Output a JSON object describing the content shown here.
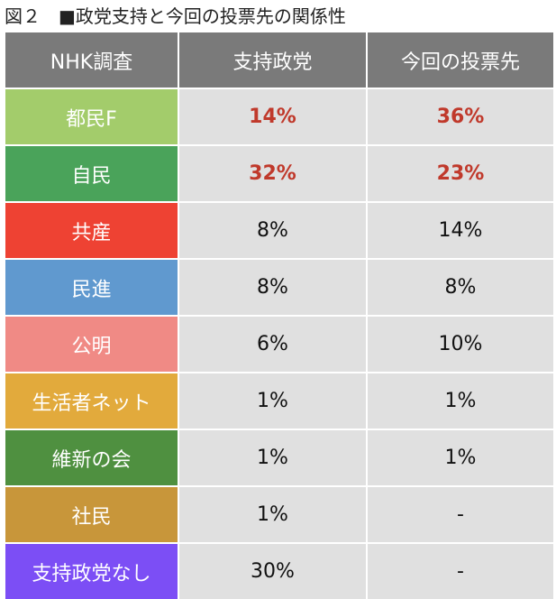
{
  "title": "図２　■政党支持と今回の投票先の関係性",
  "chart_data": {
    "type": "table",
    "title": "図２　■政党支持と今回の投票先の関係性",
    "columns": [
      "NHK調査",
      "支持政党",
      "今回の投票先"
    ],
    "rows": [
      {
        "party": "都民F",
        "color": "#a3cc6b",
        "support": "14%",
        "vote": "36%",
        "highlight": true
      },
      {
        "party": "自民",
        "color": "#4aa35a",
        "support": "32%",
        "vote": "23%",
        "highlight": true
      },
      {
        "party": "共産",
        "color": "#ee4233",
        "support": "8%",
        "vote": "14%",
        "highlight": false
      },
      {
        "party": "民進",
        "color": "#6099cf",
        "support": "8%",
        "vote": "8%",
        "highlight": false
      },
      {
        "party": "公明",
        "color": "#f08a85",
        "support": "6%",
        "vote": "10%",
        "highlight": false
      },
      {
        "party": "生活者ネット",
        "color": "#e2aa3c",
        "support": "1%",
        "vote": "1%",
        "highlight": false
      },
      {
        "party": "維新の会",
        "color": "#4f9040",
        "support": "1%",
        "vote": "1%",
        "highlight": false
      },
      {
        "party": "社民",
        "color": "#c8963a",
        "support": "1%",
        "vote": "-",
        "highlight": false
      },
      {
        "party": "支持政党なし",
        "color": "#7c4ef5",
        "support": "30%",
        "vote": "-",
        "highlight": false
      }
    ],
    "support_values_pct": [
      14,
      32,
      8,
      8,
      6,
      1,
      1,
      1,
      30
    ],
    "vote_values_pct": [
      36,
      23,
      14,
      8,
      10,
      1,
      1,
      null,
      null
    ]
  }
}
